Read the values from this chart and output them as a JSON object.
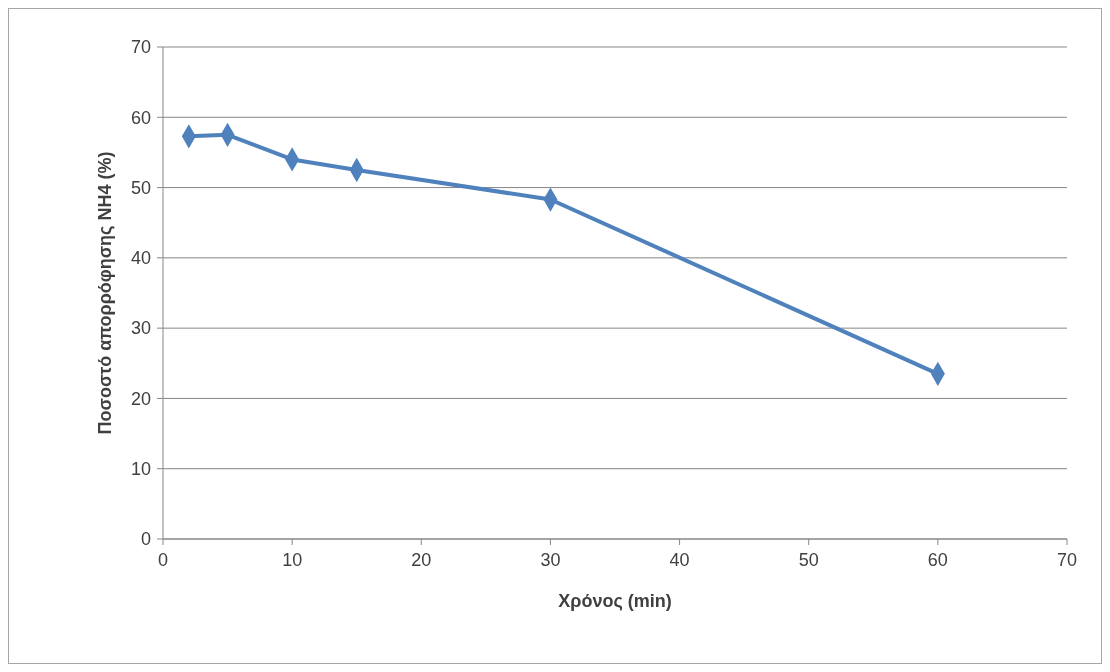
{
  "chart_data": {
    "type": "line",
    "xlabel": "Χρόνος (min)",
    "ylabel": "Ποσοστό απορρόφησης NH4 (%)",
    "x": [
      2,
      5,
      10,
      15,
      30,
      60
    ],
    "series": [
      {
        "color": "#4f81bd",
        "values": [
          57.3,
          57.5,
          54,
          52.5,
          48.3,
          23.5
        ]
      }
    ],
    "xlim": [
      0,
      70
    ],
    "xticks": [
      0,
      10,
      20,
      30,
      40,
      50,
      60,
      70
    ],
    "ylim": [
      0,
      70
    ],
    "yticks": [
      0,
      10,
      20,
      30,
      40,
      50,
      60,
      70
    ],
    "grid": "y",
    "marker": "diamond",
    "line_style": "solid"
  }
}
